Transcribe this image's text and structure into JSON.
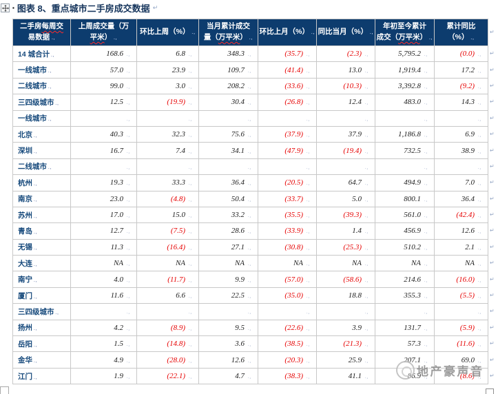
{
  "title": {
    "bullet": "▪",
    "text": "图表 8、重点城市二手房成交数据"
  },
  "marks": {
    "cell_end": ".,",
    "row_end": "↵",
    "para": "↵"
  },
  "watermark": {
    "text": "地产豪声音"
  },
  "colors": {
    "header_bg": "#0d3c6e",
    "label_blue": "#174a7c",
    "negative_red": "#e60000",
    "border_gray": "#c8c8c8",
    "title_navy": "#17365d",
    "watermark_gray": "#8f8f8f"
  },
  "table": {
    "header_cells": [
      {
        "lines": [
          [
            {
              "t": "二手房"
            },
            {
              "t": "每周交",
              "sq": true
            }
          ],
          [
            {
              "t": "易数据"
            }
          ]
        ]
      },
      {
        "lines": [
          [
            {
              "t": "上周成交量（万"
            }
          ],
          [
            {
              "t": "平米",
              "sq": true
            },
            {
              "t": "）"
            }
          ]
        ]
      },
      {
        "lines": [
          [
            {
              "t": "环比上周（%）"
            }
          ]
        ]
      },
      {
        "lines": [
          [
            {
              "t": "当月累计成交"
            }
          ],
          [
            {
              "t": "量（"
            },
            {
              "t": "万平米",
              "sq": true
            },
            {
              "t": "）"
            }
          ]
        ]
      },
      {
        "lines": [
          [
            {
              "t": "环比上月（%）"
            }
          ]
        ]
      },
      {
        "lines": [
          [
            {
              "t": "同比当月（%）"
            }
          ]
        ]
      },
      {
        "lines": [
          [
            {
              "t": "年初至今累计"
            }
          ],
          [
            {
              "t": "成交（"
            },
            {
              "t": "万平米",
              "sq": true
            },
            {
              "t": "）"
            }
          ]
        ]
      },
      {
        "lines": [
          [
            {
              "t": "累计同比（%）"
            }
          ]
        ]
      }
    ],
    "rows": [
      {
        "label": "14 城合计",
        "cells": [
          "168.6",
          "6.8",
          "348.3",
          "(35.7)",
          "(2.3)",
          "5,795.2",
          "(0.0)"
        ]
      },
      {
        "label": "一线城市",
        "cells": [
          "57.0",
          "23.9",
          "109.7",
          "(41.4)",
          "13.0",
          "1,919.4",
          "17.2"
        ]
      },
      {
        "label": "二线城市",
        "cells": [
          "99.0",
          "3.0",
          "208.2",
          "(33.6)",
          "(10.3)",
          "3,392.8",
          "(9.2)"
        ]
      },
      {
        "label": "三四级城市",
        "cells": [
          "12.5",
          "(19.9)",
          "30.4",
          "(26.8)",
          "12.4",
          "483.0",
          "14.3"
        ]
      },
      {
        "label": "一线城市",
        "cells": [
          "",
          "",
          "",
          "",
          "",
          "",
          ""
        ]
      },
      {
        "label": "北京",
        "cells": [
          "40.3",
          "32.3",
          "75.6",
          "(37.9)",
          "37.9",
          "1,186.8",
          "6.9"
        ]
      },
      {
        "label": "深圳",
        "cells": [
          "16.7",
          "7.4",
          "34.1",
          "(47.9)",
          "(19.4)",
          "732.5",
          "38.9"
        ]
      },
      {
        "label": "二线城市",
        "cells": [
          "",
          "",
          "",
          "",
          "",
          "",
          ""
        ]
      },
      {
        "label": "杭州",
        "cells": [
          "19.3",
          "33.3",
          "36.4",
          "(20.5)",
          "64.7",
          "494.9",
          "7.0"
        ]
      },
      {
        "label": "南京",
        "cells": [
          "23.0",
          "(4.8)",
          "50.4",
          "(33.7)",
          "5.0",
          "800.1",
          "36.4"
        ]
      },
      {
        "label": "苏州",
        "cells": [
          "17.0",
          "15.0",
          "33.2",
          "(35.5)",
          "(39.3)",
          "561.0",
          "(42.4)"
        ]
      },
      {
        "label": "青岛",
        "cells": [
          "12.7",
          "(7.5)",
          "28.6",
          "(33.9)",
          "1.4",
          "456.9",
          "12.6"
        ]
      },
      {
        "label": "无锡",
        "cells": [
          "11.3",
          "(16.4)",
          "27.1",
          "(30.8)",
          "(25.3)",
          "510.2",
          "2.1"
        ]
      },
      {
        "label": "大连",
        "cells": [
          "NA",
          "NA",
          "NA",
          "NA",
          "NA",
          "NA",
          "NA"
        ]
      },
      {
        "label": "南宁",
        "cells": [
          "4.0",
          "(11.7)",
          "9.9",
          "(57.0)",
          "(58.6)",
          "214.6",
          "(16.0)"
        ]
      },
      {
        "label": "厦门",
        "cells": [
          "11.6",
          "6.6",
          "22.5",
          "(35.0)",
          "18.8",
          "355.3",
          "(5.5)"
        ]
      },
      {
        "label": "三四级城市",
        "cells": [
          "",
          "",
          "",
          "",
          "",
          "",
          ""
        ]
      },
      {
        "label": "扬州",
        "cells": [
          "4.2",
          "(8.9)",
          "9.5",
          "(22.6)",
          "3.9",
          "131.7",
          "(5.9)"
        ]
      },
      {
        "label": "岳阳",
        "cells": [
          "1.5",
          "(14.8)",
          "3.6",
          "(38.5)",
          "(21.3)",
          "57.3",
          "(11.6)"
        ]
      },
      {
        "label": "金华",
        "cells": [
          "4.9",
          "(28.0)",
          "12.6",
          "(20.3)",
          "25.9",
          "207.1",
          "69.0"
        ]
      },
      {
        "label": "江门",
        "cells": [
          "1.9",
          "(22.1)",
          "4.7",
          "(38.3)",
          "41.1",
          "86.9",
          "(8.6)"
        ]
      }
    ]
  }
}
